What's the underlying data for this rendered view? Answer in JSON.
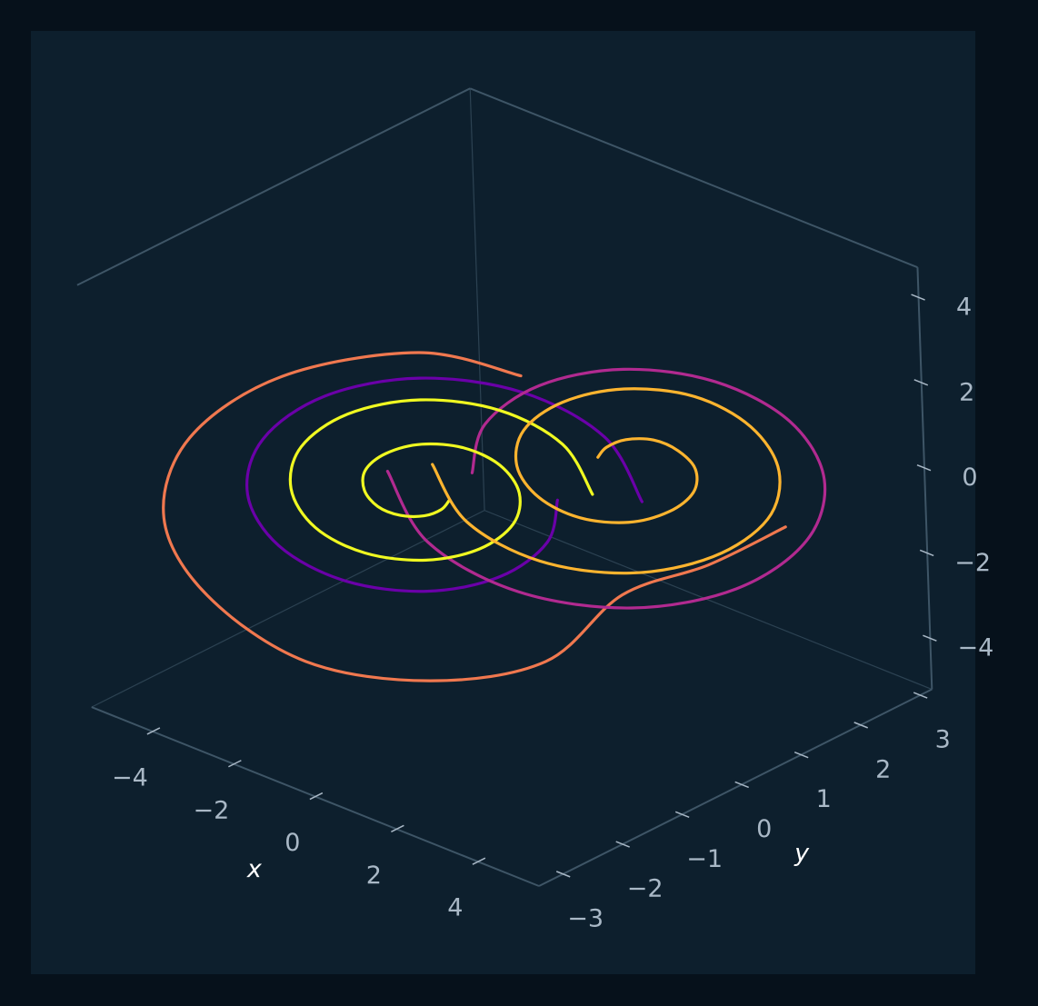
{
  "chart_data": {
    "type": "line3d",
    "xlabel": "x",
    "ylabel": "y",
    "xlim": [
      -5.5,
      5.5
    ],
    "ylim": [
      -3.4,
      3.2
    ],
    "zlim": [
      -5.2,
      4.7
    ],
    "xticks": [
      {
        "value": -4,
        "label": "−4"
      },
      {
        "value": -2,
        "label": "−2"
      },
      0,
      2,
      4
    ],
    "yticks": [
      {
        "value": -3,
        "label": "−3"
      },
      {
        "value": -2,
        "label": "−2"
      },
      {
        "value": -1,
        "label": "−1"
      },
      0,
      1,
      2,
      3
    ],
    "zticks": [
      {
        "value": -4,
        "label": "−4"
      },
      {
        "value": -2,
        "label": "−2"
      },
      0,
      2,
      4
    ],
    "series": [
      {
        "color": "#f0784f",
        "x": [
          0.2,
          -1.24,
          -3.19,
          -4.53,
          -4.94,
          -4.36,
          -2.99,
          -1.24,
          0.41,
          1.53,
          2.6,
          3.8
        ],
        "y": [
          0.1,
          -0.62,
          -1.6,
          -2.27,
          -2.47,
          -2.18,
          -1.5,
          -0.62,
          0.21,
          0.77,
          1.5,
          2.0
        ],
        "z": [
          2.3,
          2.8,
          2.18,
          0.7,
          -1.2,
          -3.0,
          -4.5,
          -4.9,
          -4.4,
          -2.8,
          -2.2,
          -1.2
        ]
      },
      {
        "color": "#6a00a8",
        "x": [
          1.86,
          1.36,
          0.21,
          -1.24,
          -2.59,
          -3.49,
          -3.74,
          -3.32,
          -2.39,
          -1.24,
          -0.19,
          0.49,
          0.66
        ],
        "y": [
          0.93,
          0.68,
          0.11,
          -0.62,
          -1.3,
          -1.75,
          -1.87,
          -1.66,
          -1.2,
          -0.62,
          -0.1,
          0.25,
          0.33
        ],
        "z": [
          -0.6,
          0.9,
          1.91,
          2.2,
          1.74,
          0.7,
          -0.6,
          -1.8,
          -2.59,
          -2.8,
          -2.42,
          -1.6,
          -0.6
        ]
      },
      {
        "color": "#b12a90",
        "x": [
          -1.74,
          -1.2,
          0.06,
          1.66,
          3.16,
          4.17,
          4.46,
          4.0,
          2.96,
          1.66,
          0.46,
          -0.33,
          -0.54
        ],
        "y": [
          -0.87,
          -0.6,
          0.03,
          0.83,
          1.58,
          2.09,
          2.23,
          2.0,
          1.48,
          0.83,
          0.23,
          -0.17,
          -0.27
        ],
        "z": [
          0,
          -1.65,
          -2.77,
          -3.1,
          -2.6,
          -1.45,
          0,
          1.35,
          2.25,
          2.5,
          2.08,
          1.15,
          0
        ]
      },
      {
        "color": "#f0f921",
        "x": [
          1.16,
          0.76,
          -0.12,
          -1.24,
          -2.27,
          -2.95,
          -3.12,
          -2.79,
          -2.1,
          -1.24,
          -0.47,
          0.02,
          0.12,
          -0.14,
          -0.64,
          -1.24,
          -1.75,
          -2.05,
          -2.08,
          -1.89,
          -1.58,
          -1.24,
          -0.99,
          -0.88
        ],
        "y": [
          0.58,
          0.38,
          -0.06,
          -0.62,
          -1.14,
          -1.48,
          -1.56,
          -1.4,
          -1.05,
          -0.62,
          -0.24,
          0.01,
          0.06,
          -0.07,
          -0.32,
          -0.62,
          -0.88,
          -1.03,
          -1.04,
          -0.95,
          -0.79,
          -0.62,
          -0.5,
          -0.44
        ],
        "z": [
          -0.45,
          0.71,
          1.48,
          1.69,
          1.33,
          0.54,
          -0.45,
          -1.35,
          -1.93,
          -2.07,
          -1.78,
          -1.18,
          -0.45,
          0.19,
          0.58,
          0.65,
          0.42,
          0.02,
          -0.45,
          -0.83,
          -1.03,
          -1.03,
          -0.87,
          -0.66
        ]
      },
      {
        "color": "#fdb42f",
        "x": [
          -1.1,
          -0.64,
          0.38,
          1.66,
          2.84,
          3.63,
          3.82,
          3.44,
          2.65,
          1.66,
          0.78,
          0.21,
          0.1,
          0.4,
          0.97,
          1.66,
          2.24,
          2.59,
          2.63,
          2.4,
          2.05,
          1.66,
          1.38,
          1.25
        ],
        "y": [
          -0.55,
          -0.32,
          0.19,
          0.83,
          1.42,
          1.82,
          1.91,
          1.72,
          1.33,
          0.83,
          0.39,
          0.11,
          0.05,
          0.2,
          0.49,
          0.83,
          1.12,
          1.3,
          1.32,
          1.2,
          1.03,
          0.83,
          0.69,
          0.63
        ],
        "z": [
          0.18,
          -1.15,
          -2.04,
          -2.28,
          -1.86,
          -0.96,
          0.18,
          1.21,
          1.89,
          2.04,
          1.7,
          1.02,
          0.18,
          -0.55,
          -1.01,
          -1.09,
          -0.82,
          -0.36,
          0.18,
          0.61,
          0.85,
          0.85,
          0.66,
          0.42
        ]
      }
    ]
  }
}
